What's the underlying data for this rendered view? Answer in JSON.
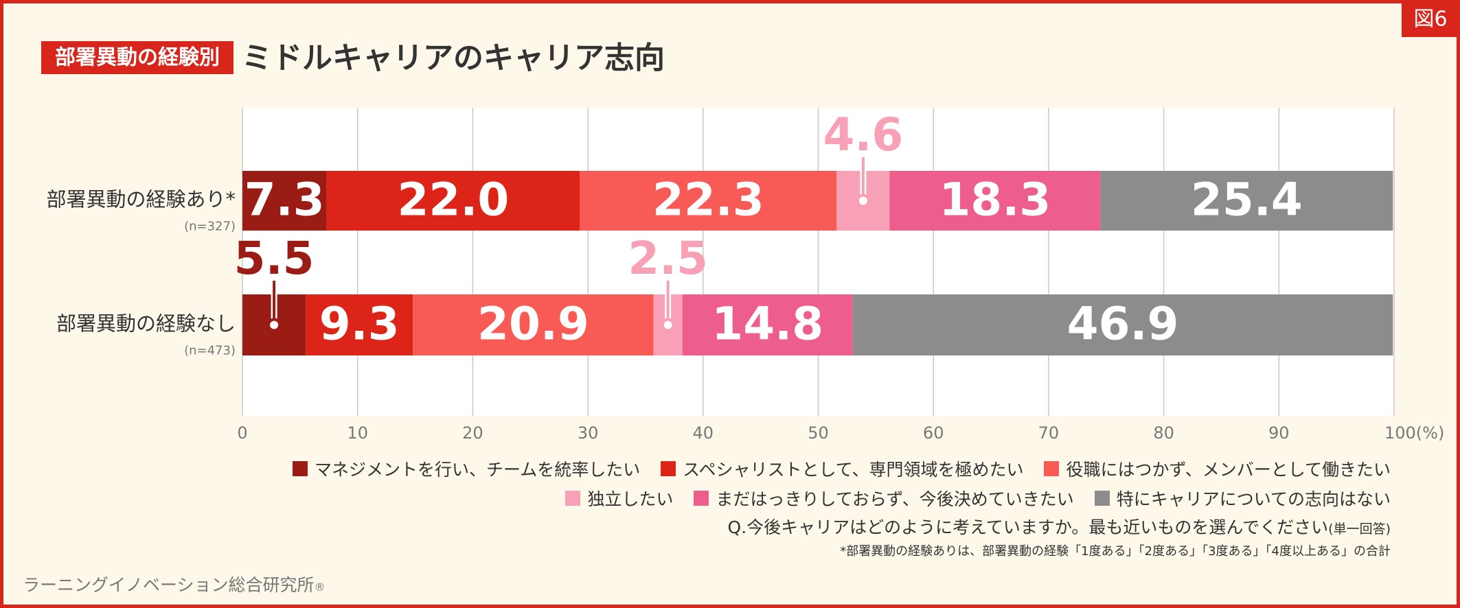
{
  "chart_data": {
    "type": "stacked-bar-horizontal",
    "badge": "図6",
    "title_tag": "部署異動の経験別",
    "title": "ミドルキャリアのキャリア志向",
    "categories": [
      "部署異動の経験あり*",
      "部署異動の経験なし"
    ],
    "category_notes": [
      "(n=327)",
      "(n=473)"
    ],
    "series": [
      {
        "name": "マネジメントを行い、チームを統率したい",
        "color": "#9b1c14",
        "values": [
          7.3,
          5.5
        ]
      },
      {
        "name": "スペシャリストとして、専門領域を極めたい",
        "color": "#dc2518",
        "values": [
          22.0,
          9.3
        ],
        "value_labels": [
          "22.0",
          "9.3"
        ]
      },
      {
        "name": "役職にはつかず、メンバーとして働きたい",
        "color": "#f85a55",
        "values": [
          22.3,
          20.9
        ]
      },
      {
        "name": "独立したい",
        "color": "#f8a0b5",
        "values": [
          4.6,
          2.5
        ]
      },
      {
        "name": "まだはっきりしておらず、今後決めていきたい",
        "color": "#ee5e8c",
        "values": [
          18.3,
          14.8
        ]
      },
      {
        "name": "特にキャリアについての志向はない",
        "color": "#8c8c8c",
        "values": [
          25.4,
          46.9
        ]
      }
    ],
    "xlim": [
      0,
      100
    ],
    "xticks": [
      0,
      10,
      20,
      30,
      40,
      50,
      60,
      70,
      80,
      90,
      {
        "value": 100,
        "label": "100(%)"
      }
    ],
    "grid": true,
    "question": "Q.今後キャリアはどのように考えていますか。最も近いものを選んでください",
    "question_note": "(単一回答)",
    "footnote": "*部署異動の経験ありは、部署異動の経験「1度ある」「2度ある」「3度ある」「4度以上ある」の合計",
    "source": "ラーニングイノベーション総合研究所",
    "source_mark": "®"
  }
}
